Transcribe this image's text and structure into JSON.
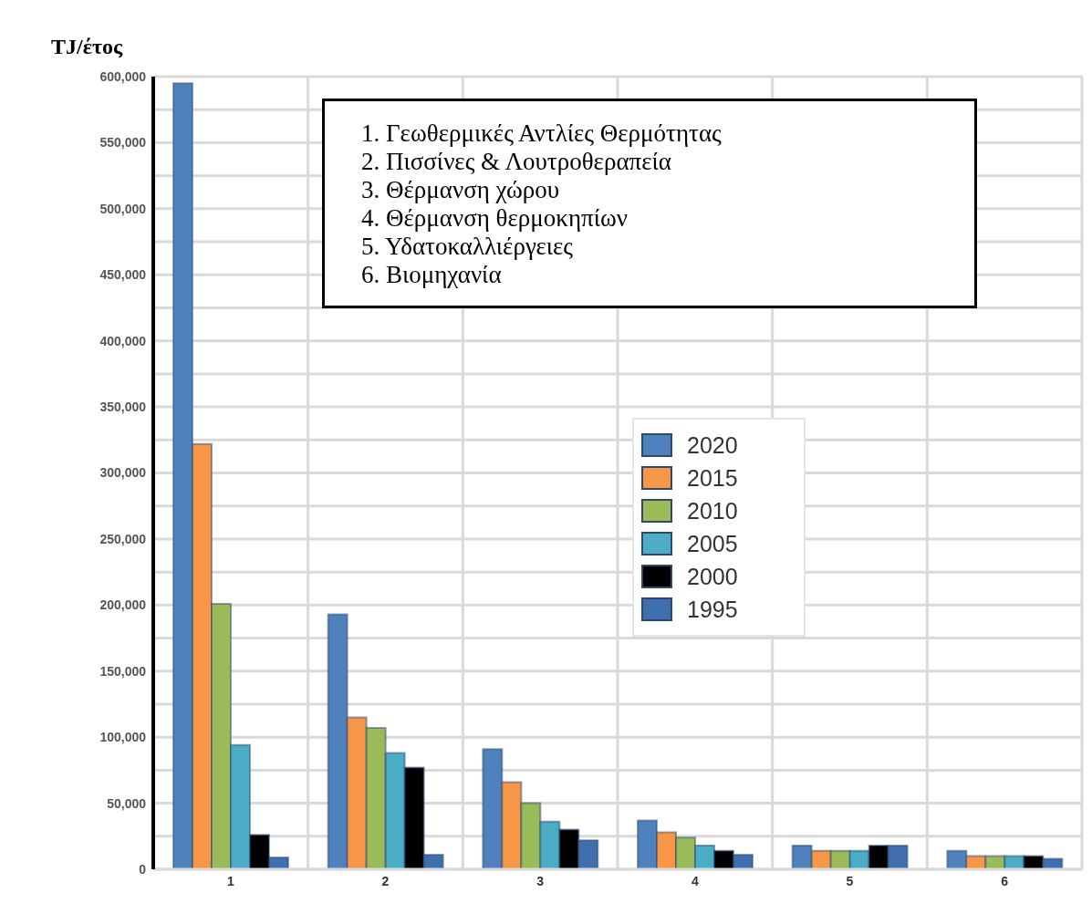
{
  "chart_data": {
    "type": "bar",
    "ylabel": "TJ/έτος",
    "categories": [
      "1",
      "2",
      "3",
      "4",
      "5",
      "6"
    ],
    "series": [
      {
        "name": "2020",
        "color": "#4f81bd",
        "values": [
          595000,
          193000,
          91000,
          37000,
          18000,
          14000
        ]
      },
      {
        "name": "2015",
        "color": "#f79646",
        "values": [
          322000,
          115000,
          66000,
          28000,
          14000,
          10000
        ]
      },
      {
        "name": "2010",
        "color": "#9bbb59",
        "values": [
          201000,
          107000,
          50000,
          24000,
          14000,
          10000
        ]
      },
      {
        "name": "2005",
        "color": "#4bacc6",
        "values": [
          94000,
          88000,
          36000,
          18000,
          14000,
          10000
        ]
      },
      {
        "name": "2000",
        "color": "#000000",
        "values": [
          26000,
          77000,
          30000,
          14000,
          18000,
          10000
        ]
      },
      {
        "name": "1995",
        "color": "#3f6fae",
        "values": [
          9000,
          11000,
          22000,
          11000,
          18000,
          8000
        ]
      }
    ],
    "ylim": [
      0,
      600000
    ],
    "yticks": [
      0,
      {
        "value": 25000,
        "label": null
      },
      {
        "value": 50000,
        "label": "50,000"
      },
      {
        "value": 75000,
        "label": null
      },
      {
        "value": 100000,
        "label": "100,000"
      },
      {
        "value": 125000,
        "label": null
      },
      {
        "value": 150000,
        "label": "150,000"
      },
      {
        "value": 175000,
        "label": null
      },
      {
        "value": 200000,
        "label": "200,000"
      },
      {
        "value": 225000,
        "label": null
      },
      {
        "value": 250000,
        "label": "250,000"
      },
      {
        "value": 275000,
        "label": null
      },
      {
        "value": 300000,
        "label": "300,000"
      },
      {
        "value": 325000,
        "label": null
      },
      {
        "value": 350000,
        "label": "350,000"
      },
      {
        "value": 375000,
        "label": null
      },
      {
        "value": 400000,
        "label": "400,000"
      },
      {
        "value": 425000,
        "label": null
      },
      {
        "value": 450000,
        "label": "450,000"
      },
      {
        "value": 475000,
        "label": null
      },
      {
        "value": 500000,
        "label": "500,000"
      },
      {
        "value": 525000,
        "label": null
      },
      {
        "value": 550000,
        "label": "550,000"
      },
      {
        "value": 575000,
        "label": null
      },
      {
        "value": 600000,
        "label": "600,000"
      }
    ],
    "grid": true,
    "legend": "center",
    "annotations": [
      "1. Γεωθερμικές Αντλίες Θερμότητας",
      "2. Πισσίνες & Λουτροθεραπεία",
      "3. Θέρμανση χώρου",
      "4. Θέρμανση θερμοκηπίων",
      "5. Υδατοκαλλιέργειες",
      "6. Βιομηχανία"
    ]
  }
}
